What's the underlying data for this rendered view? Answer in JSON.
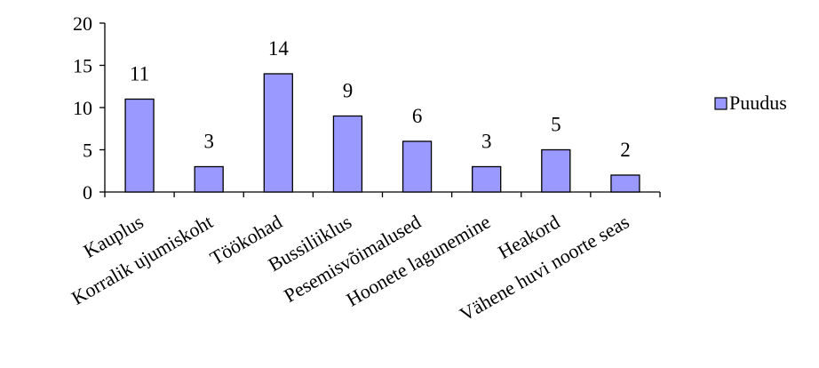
{
  "chart_data": {
    "type": "bar",
    "categories": [
      "Kauplus",
      "Korralik ujumiskoht",
      "Töökohad",
      "Bussiliiklus",
      "Pesemisvõimalused",
      "Hoonete lagunemine",
      "Heakord",
      "Vähene huvi noorte seas"
    ],
    "series": [
      {
        "name": "Puudus",
        "values": [
          11,
          3,
          14,
          9,
          6,
          3,
          5,
          2
        ],
        "color": "#9999ff"
      }
    ],
    "ylim": [
      0,
      20
    ],
    "yticks": [
      0,
      5,
      10,
      15,
      20
    ],
    "grid": false,
    "legend": "right",
    "title": "",
    "xlabel": "",
    "ylabel": ""
  }
}
